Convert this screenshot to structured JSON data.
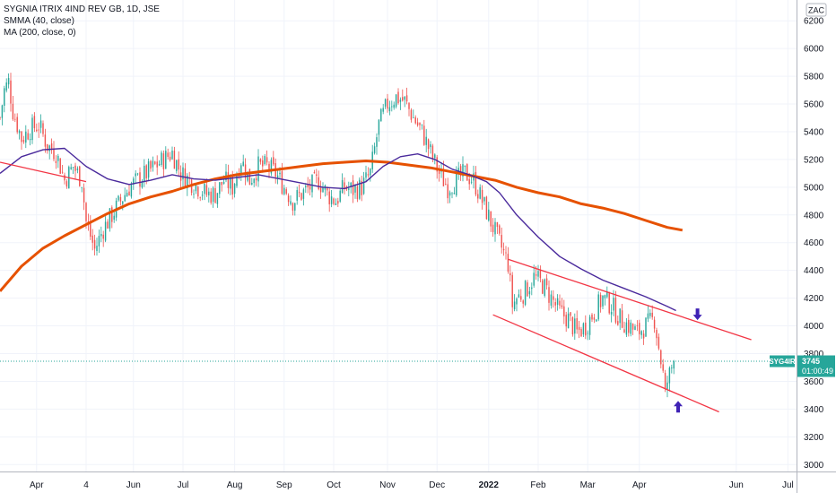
{
  "chart_data": {
    "type": "candlestick",
    "title": "SYGNIA ITRIX 4IND REV GB, 1D, JSE",
    "currency": "ZAC",
    "indicators": [
      {
        "label": "SMMA (40, close)",
        "color": "#4a2a9c"
      },
      {
        "label": "MA (200, close, 0)",
        "color": "#e65100"
      }
    ],
    "price_label": {
      "symbol": "SYG4IR",
      "value": "3745",
      "countdown": "01:00:49",
      "color": "#26a69a"
    },
    "ylim": [
      2950,
      6350
    ],
    "xlim": [
      0,
      370
    ],
    "y_ticks": [
      3000,
      3200,
      3400,
      3600,
      3800,
      4000,
      4200,
      4400,
      4600,
      4800,
      5000,
      5200,
      5400,
      5600,
      5800,
      6000,
      6200
    ],
    "x_ticks": [
      {
        "label": "Apr",
        "x": 17
      },
      {
        "label": "4",
        "x": 40
      },
      {
        "label": "Jun",
        "x": 62
      },
      {
        "label": "Jul",
        "x": 85
      },
      {
        "label": "Aug",
        "x": 109
      },
      {
        "label": "Sep",
        "x": 132
      },
      {
        "label": "Oct",
        "x": 155
      },
      {
        "label": "Nov",
        "x": 180
      },
      {
        "label": "Dec",
        "x": 203
      },
      {
        "label": "2022",
        "x": 227,
        "bold": true
      },
      {
        "label": "Feb",
        "x": 250
      },
      {
        "label": "Mar",
        "x": 273
      },
      {
        "label": "Apr",
        "x": 297
      },
      {
        "label": "Jun",
        "x": 342
      },
      {
        "label": "Jul",
        "x": 366
      }
    ],
    "last_price": 3745,
    "up_color": "#26a69a",
    "down_color": "#ef5350",
    "ohlc_anchors": [
      [
        0,
        5500
      ],
      [
        2,
        5700
      ],
      [
        4,
        5760
      ],
      [
        6,
        5550
      ],
      [
        10,
        5350
      ],
      [
        14,
        5420
      ],
      [
        18,
        5450
      ],
      [
        22,
        5300
      ],
      [
        26,
        5250
      ],
      [
        30,
        5050
      ],
      [
        34,
        5150
      ],
      [
        38,
        5050
      ],
      [
        40,
        4750
      ],
      [
        44,
        4550
      ],
      [
        48,
        4700
      ],
      [
        52,
        4800
      ],
      [
        56,
        4900
      ],
      [
        60,
        5000
      ],
      [
        64,
        5050
      ],
      [
        68,
        5100
      ],
      [
        72,
        5150
      ],
      [
        76,
        5200
      ],
      [
        80,
        5250
      ],
      [
        84,
        5100
      ],
      [
        88,
        5050
      ],
      [
        92,
        5000
      ],
      [
        96,
        4950
      ],
      [
        100,
        4950
      ],
      [
        104,
        5050
      ],
      [
        108,
        5000
      ],
      [
        112,
        5200
      ],
      [
        116,
        5050
      ],
      [
        120,
        5150
      ],
      [
        124,
        5150
      ],
      [
        128,
        5100
      ],
      [
        132,
        5000
      ],
      [
        136,
        4900
      ],
      [
        140,
        4950
      ],
      [
        144,
        5000
      ],
      [
        148,
        5050
      ],
      [
        152,
        4950
      ],
      [
        156,
        4900
      ],
      [
        160,
        5000
      ],
      [
        164,
        4980
      ],
      [
        168,
        5000
      ],
      [
        172,
        5100
      ],
      [
        176,
        5450
      ],
      [
        180,
        5600
      ],
      [
        184,
        5650
      ],
      [
        188,
        5620
      ],
      [
        192,
        5500
      ],
      [
        196,
        5400
      ],
      [
        200,
        5250
      ],
      [
        204,
        5100
      ],
      [
        208,
        5000
      ],
      [
        212,
        5050
      ],
      [
        216,
        5100
      ],
      [
        220,
        5050
      ],
      [
        224,
        4900
      ],
      [
        228,
        4750
      ],
      [
        232,
        4600
      ],
      [
        236,
        4450
      ],
      [
        238,
        4150
      ],
      [
        240,
        4200
      ],
      [
        244,
        4250
      ],
      [
        248,
        4350
      ],
      [
        252,
        4300
      ],
      [
        256,
        4200
      ],
      [
        260,
        4100
      ],
      [
        264,
        4050
      ],
      [
        268,
        3950
      ],
      [
        272,
        4000
      ],
      [
        276,
        4100
      ],
      [
        280,
        4200
      ],
      [
        284,
        4150
      ],
      [
        288,
        4050
      ],
      [
        292,
        4000
      ],
      [
        296,
        3950
      ],
      [
        300,
        4000
      ],
      [
        304,
        4050
      ],
      [
        306,
        3850
      ],
      [
        308,
        3650
      ],
      [
        309,
        3500
      ],
      [
        310,
        3600
      ],
      [
        312,
        3700
      ],
      [
        313,
        3745
      ]
    ],
    "smma_points": [
      [
        0,
        5100
      ],
      [
        10,
        5220
      ],
      [
        20,
        5270
      ],
      [
        30,
        5280
      ],
      [
        40,
        5150
      ],
      [
        50,
        5060
      ],
      [
        60,
        5020
      ],
      [
        70,
        5050
      ],
      [
        80,
        5090
      ],
      [
        90,
        5060
      ],
      [
        100,
        5050
      ],
      [
        110,
        5070
      ],
      [
        120,
        5090
      ],
      [
        130,
        5060
      ],
      [
        140,
        5030
      ],
      [
        150,
        5000
      ],
      [
        160,
        4990
      ],
      [
        170,
        5040
      ],
      [
        178,
        5150
      ],
      [
        186,
        5220
      ],
      [
        194,
        5240
      ],
      [
        202,
        5200
      ],
      [
        210,
        5130
      ],
      [
        218,
        5090
      ],
      [
        226,
        5040
      ],
      [
        232,
        4960
      ],
      [
        240,
        4800
      ],
      [
        250,
        4640
      ],
      [
        260,
        4500
      ],
      [
        270,
        4410
      ],
      [
        280,
        4330
      ],
      [
        290,
        4270
      ],
      [
        300,
        4210
      ],
      [
        310,
        4140
      ],
      [
        314,
        4110
      ]
    ],
    "ma200_points": [
      [
        0,
        4250
      ],
      [
        10,
        4430
      ],
      [
        20,
        4560
      ],
      [
        30,
        4650
      ],
      [
        40,
        4730
      ],
      [
        50,
        4810
      ],
      [
        60,
        4880
      ],
      [
        70,
        4930
      ],
      [
        80,
        4970
      ],
      [
        90,
        5020
      ],
      [
        100,
        5060
      ],
      [
        110,
        5090
      ],
      [
        120,
        5110
      ],
      [
        130,
        5130
      ],
      [
        140,
        5150
      ],
      [
        150,
        5170
      ],
      [
        160,
        5180
      ],
      [
        170,
        5190
      ],
      [
        180,
        5180
      ],
      [
        190,
        5160
      ],
      [
        200,
        5140
      ],
      [
        210,
        5110
      ],
      [
        220,
        5080
      ],
      [
        230,
        5050
      ],
      [
        240,
        5000
      ],
      [
        250,
        4960
      ],
      [
        260,
        4930
      ],
      [
        270,
        4880
      ],
      [
        280,
        4850
      ],
      [
        290,
        4810
      ],
      [
        300,
        4760
      ],
      [
        310,
        4710
      ],
      [
        317,
        4690
      ]
    ],
    "trendlines": [
      {
        "name": "early-downtrend",
        "from": [
          0,
          5180
        ],
        "to": [
          40,
          5040
        ]
      },
      {
        "name": "channel-upper",
        "from": [
          236,
          4480
        ],
        "to": [
          349,
          3900
        ]
      },
      {
        "name": "channel-lower",
        "from": [
          229,
          4080
        ],
        "to": [
          334,
          3380
        ]
      }
    ],
    "arrows": [
      {
        "name": "down-arrow",
        "at": [
          324,
          4080
        ],
        "direction": "down",
        "color": "#3f22b5"
      },
      {
        "name": "up-arrow",
        "at": [
          315,
          3420
        ],
        "direction": "up",
        "color": "#3f22b5"
      }
    ]
  }
}
